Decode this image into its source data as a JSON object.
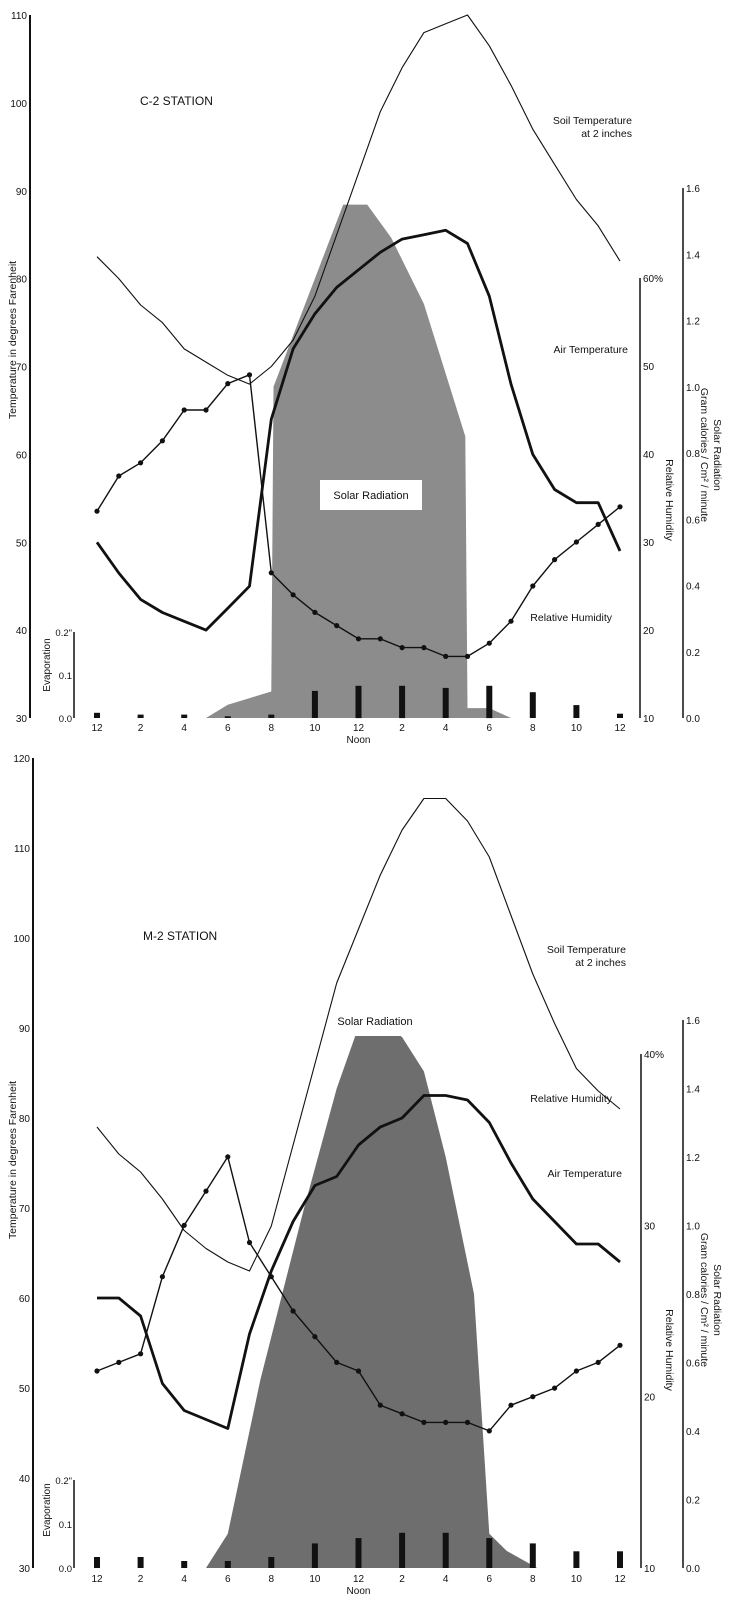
{
  "colors": {
    "ink": "#111111",
    "radiation_c2": "#8c8c8c",
    "radiation_m2": "#6e6e6e",
    "label_box": "#ffffff",
    "page": "#ffffff"
  },
  "chart_data": [
    {
      "type": "line",
      "title": "C-2 STATION",
      "xlabel": "Noon",
      "x_hours": [
        0,
        1,
        2,
        3,
        4,
        5,
        6,
        7,
        8,
        9,
        10,
        11,
        12,
        13,
        14,
        15,
        16,
        17,
        18,
        19,
        20,
        21,
        22,
        23,
        24
      ],
      "x_ticks": [
        {
          "hour": 0,
          "label": "12"
        },
        {
          "hour": 2,
          "label": "2"
        },
        {
          "hour": 4,
          "label": "4"
        },
        {
          "hour": 6,
          "label": "6"
        },
        {
          "hour": 8,
          "label": "8"
        },
        {
          "hour": 10,
          "label": "10"
        },
        {
          "hour": 12,
          "label": "12"
        },
        {
          "hour": 14,
          "label": "2"
        },
        {
          "hour": 16,
          "label": "4"
        },
        {
          "hour": 18,
          "label": "6"
        },
        {
          "hour": 20,
          "label": "8"
        },
        {
          "hour": 22,
          "label": "10"
        },
        {
          "hour": 24,
          "label": "12"
        }
      ],
      "axes": {
        "temperature": {
          "label": "Temperature in degrees Farenheit",
          "range": [
            30,
            110
          ],
          "ticks": [
            "30",
            "40",
            "50",
            "60",
            "70",
            "80",
            "90",
            "100",
            "110"
          ]
        },
        "humidity": {
          "label": "Relative Humidity",
          "range": [
            10,
            60
          ],
          "ticks": [
            "10",
            "20",
            "30",
            "40",
            "50",
            "60%"
          ]
        },
        "radiation": {
          "label_line1": "Solar Radiation",
          "label_line2": "Gram calories / Cm² / minute",
          "range": [
            0.0,
            1.6
          ],
          "ticks": [
            "0.0",
            "0.2",
            "0.4",
            "0.6",
            "0.8",
            "1.0",
            "1.2",
            "1.4",
            "1.6"
          ]
        },
        "evaporation": {
          "label": "Evaporation",
          "range": [
            0.0,
            0.2
          ],
          "ticks": [
            "0.0",
            "0.1",
            "0.2\""
          ]
        }
      },
      "series": [
        {
          "name": "Soil Temperature",
          "label_line1": "Soil Temperature",
          "label_line2": "at 2 inches",
          "axis": "temperature",
          "style": "thin",
          "values": [
            82.5,
            80,
            77,
            75,
            72,
            70.5,
            69,
            68,
            70,
            73,
            78,
            85,
            92,
            99,
            104,
            108,
            109,
            110,
            106.5,
            102,
            97,
            93,
            89,
            86,
            82
          ]
        },
        {
          "name": "Air Temperature",
          "axis": "temperature",
          "style": "thick",
          "values": [
            50,
            46.5,
            43.5,
            42,
            41,
            40,
            42.5,
            45,
            64,
            72,
            76,
            79,
            81,
            83,
            84.5,
            85,
            85.5,
            84,
            78,
            68,
            60,
            56,
            54.5,
            54.5,
            49
          ]
        },
        {
          "name": "Relative Humidity",
          "axis": "humidity",
          "style": "dotted",
          "values": [
            33.5,
            37.5,
            39,
            41.5,
            45,
            45,
            48,
            49,
            26.5,
            24,
            22,
            20.5,
            19,
            19,
            18,
            18,
            17,
            17,
            18.5,
            21,
            25,
            28,
            30,
            32,
            34
          ]
        },
        {
          "name": "Solar Radiation",
          "axis": "radiation",
          "style": "area",
          "hours": [
            5,
            6,
            8,
            8.1,
            11.3,
            12.4,
            13.5,
            15,
            16.9,
            17,
            18,
            19
          ],
          "values": [
            0.0,
            0.04,
            0.08,
            1.0,
            1.55,
            1.55,
            1.45,
            1.25,
            0.85,
            0.03,
            0.03,
            0.0
          ]
        },
        {
          "name": "Evaporation",
          "axis": "evaporation",
          "style": "bars",
          "hours": [
            0,
            2,
            4,
            6,
            8,
            10,
            12,
            14,
            16,
            18,
            20,
            22,
            24
          ],
          "values": [
            0.012,
            0.008,
            0.008,
            0.004,
            0.008,
            0.063,
            0.075,
            0.075,
            0.07,
            0.075,
            0.06,
            0.03,
            0.01
          ]
        }
      ]
    },
    {
      "type": "line",
      "title": "M-2 STATION",
      "xlabel": "Noon",
      "x_hours": [
        0,
        1,
        2,
        3,
        4,
        5,
        6,
        7,
        8,
        9,
        10,
        11,
        12,
        13,
        14,
        15,
        16,
        17,
        18,
        19,
        20,
        21,
        22,
        23,
        24
      ],
      "x_ticks": [
        {
          "hour": 0,
          "label": "12"
        },
        {
          "hour": 2,
          "label": "2"
        },
        {
          "hour": 4,
          "label": "4"
        },
        {
          "hour": 6,
          "label": "6"
        },
        {
          "hour": 8,
          "label": "8"
        },
        {
          "hour": 10,
          "label": "10"
        },
        {
          "hour": 12,
          "label": "12"
        },
        {
          "hour": 14,
          "label": "2"
        },
        {
          "hour": 16,
          "label": "4"
        },
        {
          "hour": 18,
          "label": "6"
        },
        {
          "hour": 20,
          "label": "8"
        },
        {
          "hour": 22,
          "label": "10"
        },
        {
          "hour": 24,
          "label": "12"
        }
      ],
      "axes": {
        "temperature": {
          "label": "Temperature in degrees Farenheit",
          "range": [
            30,
            120
          ],
          "ticks": [
            "30",
            "40",
            "50",
            "60",
            "70",
            "80",
            "90",
            "100",
            "110",
            "120"
          ]
        },
        "humidity": {
          "label": "Relative Humidity",
          "range": [
            10,
            40
          ],
          "ticks": [
            "10",
            "20",
            "30",
            "40%"
          ]
        },
        "radiation": {
          "label_line1": "Solar Radiation",
          "label_line2": "Gram calories / Cm² / minute",
          "range": [
            0.0,
            1.6
          ],
          "ticks": [
            "0.0",
            "0.2",
            "0.4",
            "0.6",
            "0.8",
            "1.0",
            "1.2",
            "1.4",
            "1.6"
          ]
        },
        "evaporation": {
          "label": "Evaporation",
          "range": [
            0.0,
            0.2
          ],
          "ticks": [
            "0.0",
            "0.1",
            "0.2\""
          ]
        }
      },
      "series": [
        {
          "name": "Soil Temperature",
          "label_line1": "Soil Temperature",
          "label_line2": "at 2 inches",
          "axis": "temperature",
          "style": "thin",
          "values": [
            79,
            76,
            74,
            71,
            67.5,
            65.5,
            64,
            63,
            68,
            77,
            86,
            95,
            101,
            107,
            112,
            115.5,
            115.5,
            113,
            109,
            102.5,
            96,
            90.5,
            85.5,
            83,
            81
          ]
        },
        {
          "name": "Air Temperature",
          "axis": "temperature",
          "style": "thick",
          "values": [
            60,
            60,
            58,
            50.5,
            47.5,
            46.5,
            45.5,
            56,
            63,
            68.5,
            72.5,
            73.5,
            77,
            79,
            80,
            82.5,
            82.5,
            82,
            79.5,
            75,
            71,
            68.5,
            66,
            66,
            64
          ]
        },
        {
          "name": "Relative Humidity",
          "axis": "humidity",
          "style": "dotted",
          "values": [
            21.5,
            22,
            22.5,
            27,
            30,
            32,
            34,
            29,
            27,
            25,
            23.5,
            22,
            21.5,
            19.5,
            19,
            18.5,
            18.5,
            18.5,
            18,
            19.5,
            20,
            20.5,
            21.5,
            22,
            23
          ]
        },
        {
          "name": "Solar Radiation",
          "axis": "radiation",
          "style": "area",
          "hours": [
            5,
            6,
            7.5,
            9.5,
            11,
            12,
            13,
            14,
            15,
            16,
            17.3,
            18,
            18.8,
            20.2
          ],
          "values": [
            0.0,
            0.1,
            0.55,
            1.05,
            1.4,
            1.58,
            1.6,
            1.55,
            1.45,
            1.2,
            0.8,
            0.1,
            0.05,
            0.0
          ]
        },
        {
          "name": "Evaporation",
          "axis": "evaporation",
          "style": "bars",
          "hours": [
            0,
            2,
            4,
            6,
            8,
            10,
            12,
            14,
            16,
            18,
            20,
            22,
            24
          ],
          "values": [
            0.025,
            0.025,
            0.016,
            0.016,
            0.025,
            0.056,
            0.068,
            0.08,
            0.08,
            0.068,
            0.056,
            0.038,
            0.038
          ]
        }
      ]
    }
  ]
}
